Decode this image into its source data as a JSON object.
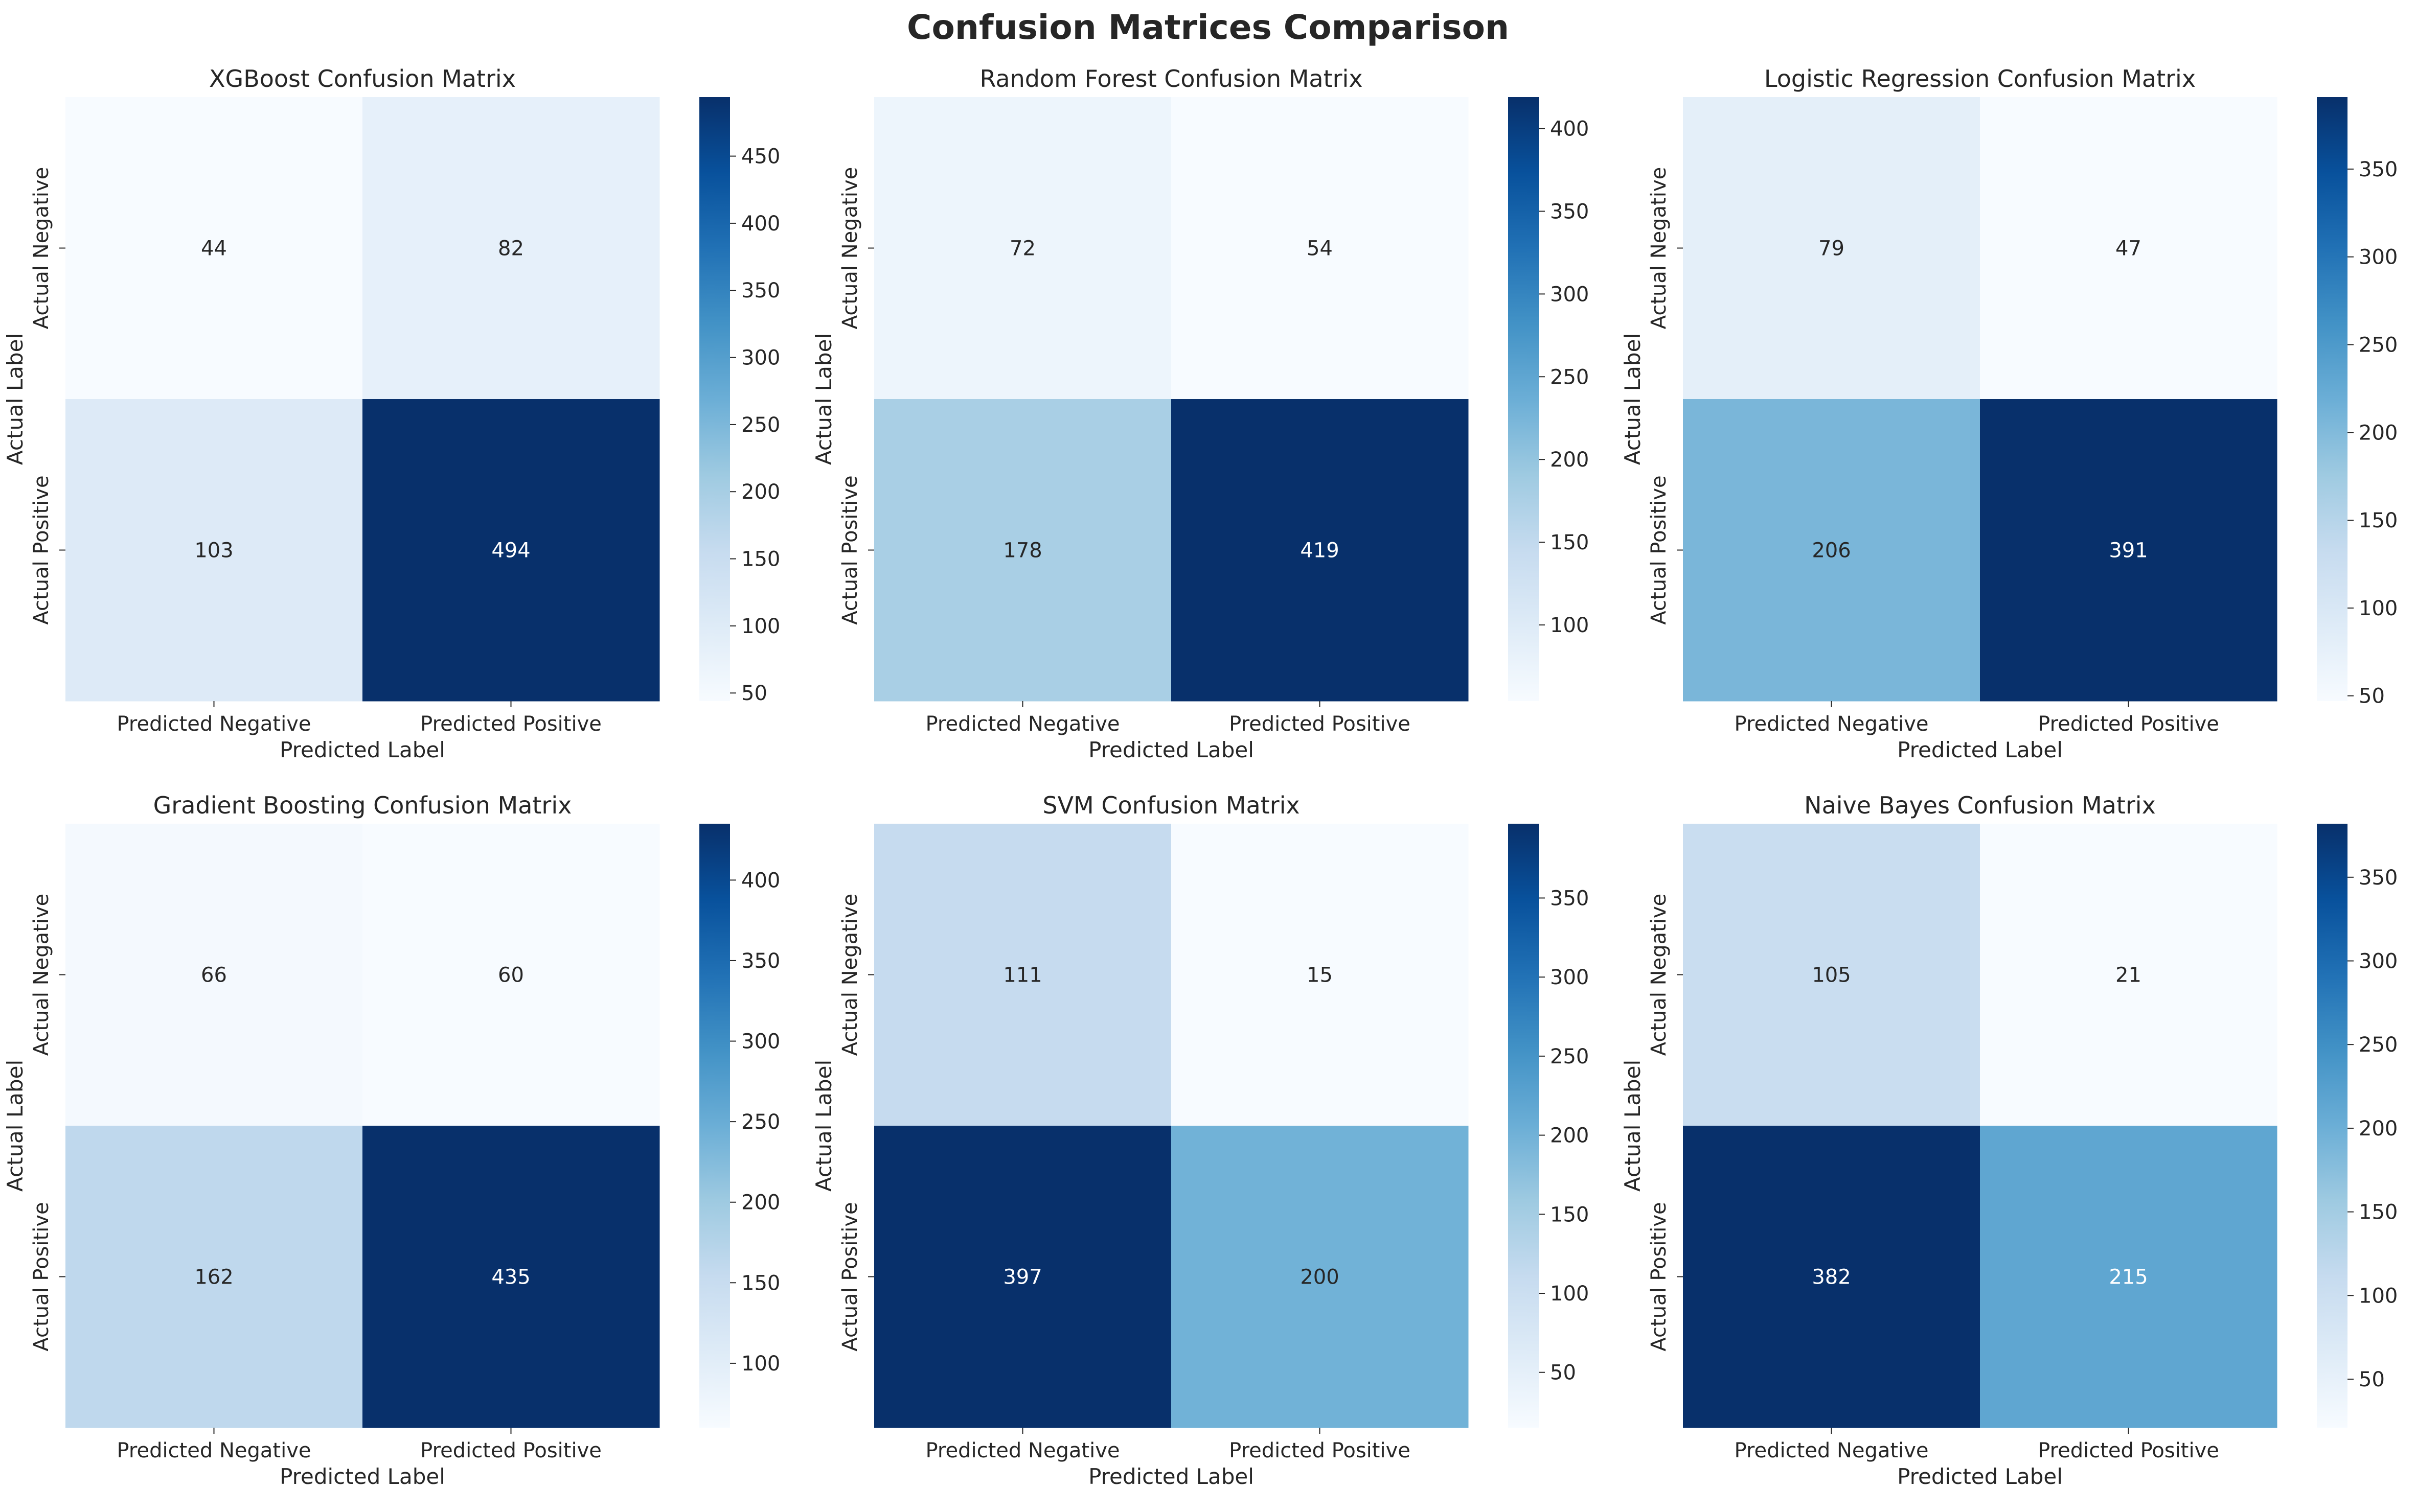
{
  "figure": {
    "title": "Confusion Matrices Comparison"
  },
  "chart_data": [
    {
      "type": "heatmap",
      "title": "XGBoost Confusion Matrix",
      "xlabel": "Predicted Label",
      "ylabel": "Actual Label",
      "x_categories": [
        "Predicted Negative",
        "Predicted Positive"
      ],
      "y_categories": [
        "Actual Negative",
        "Actual Positive"
      ],
      "matrix": [
        [
          44,
          82
        ],
        [
          103,
          494
        ]
      ],
      "colormap": "Blues",
      "colorbar_ticks": [
        50,
        100,
        150,
        200,
        250,
        300,
        350,
        400,
        450
      ]
    },
    {
      "type": "heatmap",
      "title": "Random Forest Confusion Matrix",
      "xlabel": "Predicted Label",
      "ylabel": "Actual Label",
      "x_categories": [
        "Predicted Negative",
        "Predicted Positive"
      ],
      "y_categories": [
        "Actual Negative",
        "Actual Positive"
      ],
      "matrix": [
        [
          72,
          54
        ],
        [
          178,
          419
        ]
      ],
      "colormap": "Blues",
      "colorbar_ticks": [
        100,
        150,
        200,
        250,
        300,
        350,
        400
      ]
    },
    {
      "type": "heatmap",
      "title": "Logistic Regression Confusion Matrix",
      "xlabel": "Predicted Label",
      "ylabel": "Actual Label",
      "x_categories": [
        "Predicted Negative",
        "Predicted Positive"
      ],
      "y_categories": [
        "Actual Negative",
        "Actual Positive"
      ],
      "matrix": [
        [
          79,
          47
        ],
        [
          206,
          391
        ]
      ],
      "colormap": "Blues",
      "colorbar_ticks": [
        50,
        100,
        150,
        200,
        250,
        300,
        350
      ]
    },
    {
      "type": "heatmap",
      "title": "Gradient Boosting Confusion Matrix",
      "xlabel": "Predicted Label",
      "ylabel": "Actual Label",
      "x_categories": [
        "Predicted Negative",
        "Predicted Positive"
      ],
      "y_categories": [
        "Actual Negative",
        "Actual Positive"
      ],
      "matrix": [
        [
          66,
          60
        ],
        [
          162,
          435
        ]
      ],
      "colormap": "Blues",
      "colorbar_ticks": [
        100,
        150,
        200,
        250,
        300,
        350,
        400
      ]
    },
    {
      "type": "heatmap",
      "title": "SVM Confusion Matrix",
      "xlabel": "Predicted Label",
      "ylabel": "Actual Label",
      "x_categories": [
        "Predicted Negative",
        "Predicted Positive"
      ],
      "y_categories": [
        "Actual Negative",
        "Actual Positive"
      ],
      "matrix": [
        [
          111,
          15
        ],
        [
          397,
          200
        ]
      ],
      "colormap": "Blues",
      "colorbar_ticks": [
        50,
        100,
        150,
        200,
        250,
        300,
        350
      ]
    },
    {
      "type": "heatmap",
      "title": "Naive Bayes Confusion Matrix",
      "xlabel": "Predicted Label",
      "ylabel": "Actual Label",
      "x_categories": [
        "Predicted Negative",
        "Predicted Positive"
      ],
      "y_categories": [
        "Actual Negative",
        "Actual Positive"
      ],
      "matrix": [
        [
          105,
          21
        ],
        [
          382,
          215
        ]
      ],
      "colormap": "Blues",
      "colorbar_ticks": [
        50,
        100,
        150,
        200,
        250,
        300,
        350
      ]
    }
  ]
}
